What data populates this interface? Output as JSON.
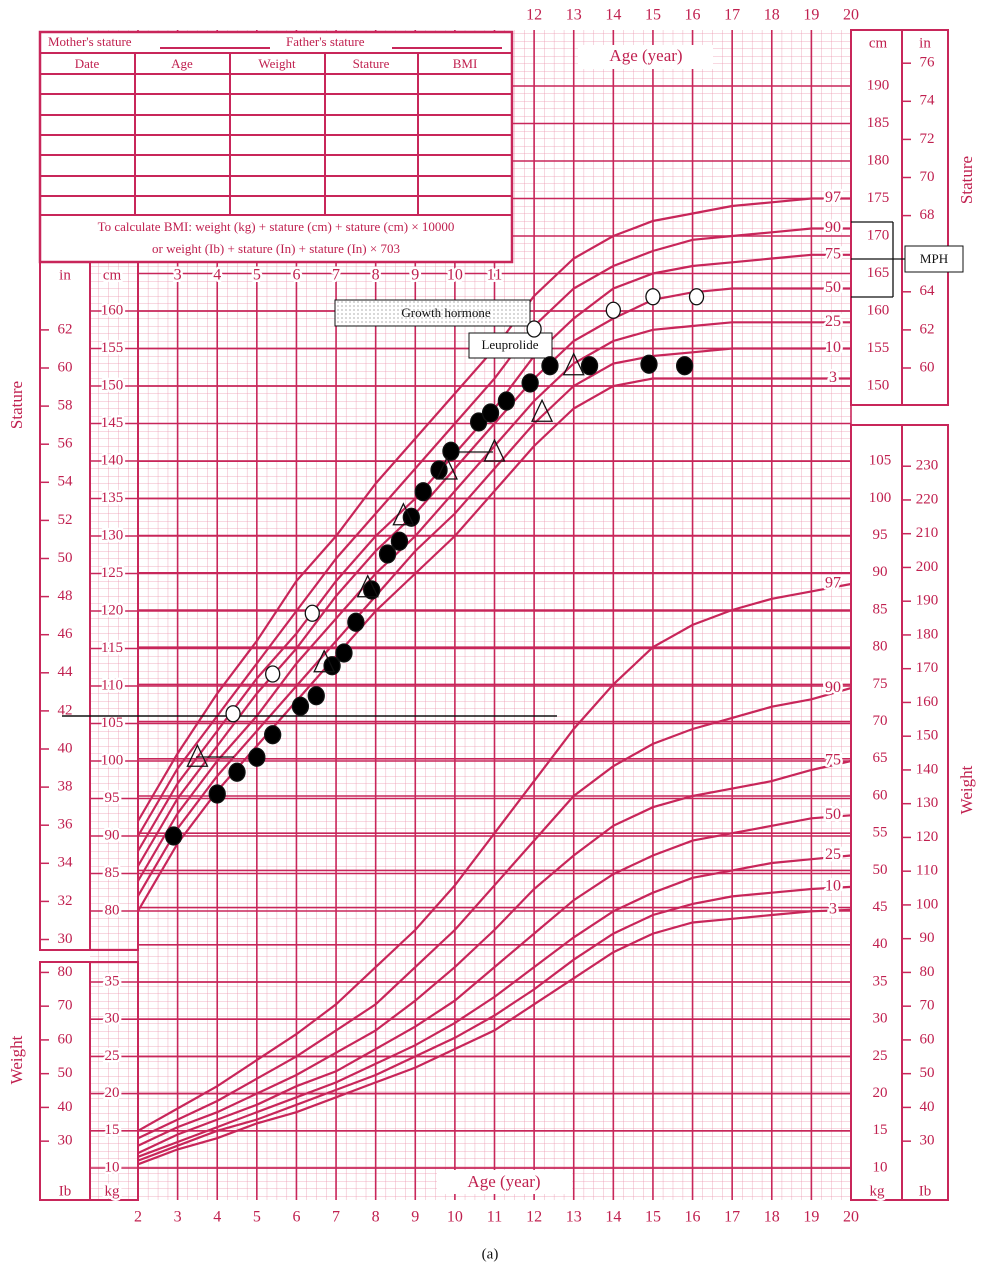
{
  "chart_data": {
    "type": "growth",
    "form": {
      "mothers_stature": "Mother's stature",
      "fathers_stature": "Father's stature",
      "columns": [
        "Date",
        "Age",
        "Weight",
        "Stature",
        "BMI"
      ],
      "note": [
        "To calculate BMI: weight (kg) + stature (cm) + stature (cm) × 10000",
        "or weight (Ib) + stature (In) + stature (In) × 703"
      ]
    },
    "x_label": "Age (year)",
    "y_label": "Stature",
    "y2_label": "Weight",
    "units": {
      "cm": "cm",
      "in": "in",
      "kg": "kg",
      "lb": "Ib"
    },
    "ages": [
      2,
      3,
      4,
      5,
      6,
      7,
      8,
      9,
      10,
      11,
      12,
      13,
      14,
      15,
      16,
      17,
      18,
      19,
      20
    ],
    "xlim": [
      2,
      20
    ],
    "xticks": [
      2,
      3,
      4,
      5,
      6,
      7,
      8,
      9,
      10,
      11,
      12,
      13,
      14,
      15,
      16,
      17,
      18,
      19,
      20
    ],
    "xticks_top": [
      12,
      13,
      14,
      15,
      16,
      17,
      18,
      19,
      20
    ],
    "xticks_inner": [
      3,
      4,
      5,
      6,
      7,
      8,
      9,
      10,
      11
    ],
    "ylim": [
      75,
      195
    ],
    "yticks_left": [
      80,
      85,
      90,
      95,
      100,
      105,
      110,
      115,
      120,
      125,
      130,
      135,
      140,
      145,
      150,
      155,
      160
    ],
    "yticks_right": [
      150,
      155,
      160,
      165,
      170,
      175,
      180,
      185,
      190
    ],
    "in_ticks_left": [
      30,
      32,
      34,
      36,
      38,
      40,
      42,
      44,
      46,
      48,
      50,
      52,
      54,
      56,
      58,
      60,
      62
    ],
    "in_ticks_right": [
      60,
      62,
      64,
      68,
      70,
      72,
      74,
      76
    ],
    "y2lim": [
      5,
      110
    ],
    "y2ticks_left": [
      10,
      15,
      20,
      25,
      30,
      35
    ],
    "y2ticks_right": [
      10,
      15,
      20,
      25,
      30,
      35,
      40,
      45,
      50,
      55,
      60,
      65,
      70,
      75,
      80,
      85,
      90,
      95,
      100,
      105
    ],
    "lb_ticks_left": [
      30,
      40,
      50,
      60,
      70,
      80
    ],
    "lb_ticks_right": [
      30,
      40,
      50,
      60,
      70,
      80,
      90,
      100,
      110,
      120,
      130,
      140,
      150,
      160,
      170,
      180,
      190,
      200,
      210,
      220,
      230
    ],
    "color": "#c8265a",
    "grid": true,
    "stature_percentiles": [
      {
        "name": "97",
        "values": [
          92,
          101,
          109,
          116,
          124,
          130,
          137,
          143,
          149,
          155,
          162,
          167,
          170,
          172,
          173,
          174,
          174.5,
          175,
          175
        ]
      },
      {
        "name": "90",
        "values": [
          90,
          99,
          106,
          113,
          120,
          127,
          133,
          139,
          145,
          151,
          158,
          163,
          166,
          168,
          169.5,
          170,
          170.5,
          171,
          171
        ]
      },
      {
        "name": "75",
        "values": [
          88,
          97,
          104,
          111,
          117,
          124,
          130,
          135,
          141,
          147,
          154,
          159,
          163,
          165,
          166,
          166.5,
          167,
          167.5,
          167.5
        ]
      },
      {
        "name": "50",
        "values": [
          86,
          95,
          102,
          109,
          115,
          122,
          128,
          133,
          139,
          145,
          151,
          156,
          159,
          161.5,
          162.5,
          163,
          163,
          163,
          163
        ]
      },
      {
        "name": "25",
        "values": [
          84,
          93,
          100,
          106,
          113,
          119,
          125,
          130,
          136,
          142,
          148,
          153,
          156,
          157.5,
          158,
          158.5,
          158.5,
          158.5,
          158.5
        ]
      },
      {
        "name": "10",
        "values": [
          82,
          91,
          98,
          104,
          110,
          116,
          122,
          128,
          133,
          139,
          145,
          150,
          153,
          154,
          154.5,
          155,
          155,
          155,
          155
        ]
      },
      {
        "name": "3",
        "values": [
          80,
          89,
          96,
          102,
          108,
          114,
          120,
          125,
          130,
          136,
          142,
          147,
          150,
          151,
          151,
          151,
          151,
          151,
          151
        ]
      }
    ],
    "weight_percentiles": [
      {
        "name": "97",
        "values": [
          15,
          18,
          21,
          24.5,
          28,
          32,
          37,
          42,
          48,
          55,
          62,
          69,
          75,
          80,
          83,
          85,
          86.5,
          87.5,
          88.5
        ]
      },
      {
        "name": "90",
        "values": [
          14,
          16.5,
          19,
          22,
          25,
          28.5,
          32,
          37,
          42,
          48,
          54,
          60,
          64,
          67,
          69,
          70.5,
          72,
          73,
          74.5
        ]
      },
      {
        "name": "75",
        "values": [
          13,
          15.5,
          17.5,
          20,
          22.5,
          25.5,
          28.5,
          32.5,
          37,
          42,
          47.5,
          52,
          56,
          58.5,
          60,
          61,
          62,
          63.5,
          64.7
        ]
      },
      {
        "name": "50",
        "values": [
          12,
          14.5,
          16.5,
          18.5,
          21,
          23,
          26,
          29,
          32.5,
          37,
          41.5,
          46,
          49.5,
          52,
          54,
          55,
          56,
          57,
          57.4
        ]
      },
      {
        "name": "25",
        "values": [
          11.5,
          13.5,
          15.5,
          17.5,
          19.5,
          21.5,
          24,
          26.5,
          29.5,
          33,
          37,
          41,
          44.5,
          47,
          49,
          50,
          51,
          51.5,
          52
        ]
      },
      {
        "name": "10",
        "values": [
          11,
          13,
          15,
          16.5,
          18.5,
          20.5,
          22.5,
          25,
          27.5,
          30.5,
          34,
          38,
          41.5,
          44,
          45.5,
          46.5,
          47,
          47.5,
          47.8
        ]
      },
      {
        "name": "3",
        "values": [
          10.5,
          12.5,
          14,
          16,
          17.5,
          19.5,
          21.5,
          23.5,
          26,
          28.5,
          32,
          35.5,
          39,
          41.5,
          43,
          43.5,
          44,
          44.5,
          44.7
        ]
      }
    ],
    "measurements": [
      {
        "marker": "filled-circle",
        "x": [
          2.9,
          4.0,
          4.5,
          5.0,
          5.4,
          6.1,
          6.5,
          6.9,
          7.2,
          7.5,
          7.9,
          8.3,
          8.6,
          8.9,
          9.2,
          9.6,
          9.9,
          10.6,
          10.9,
          11.3,
          11.9,
          12.4,
          13.4,
          14.9,
          15.8
        ],
        "values": [
          90,
          95.6,
          98.5,
          100.5,
          103.5,
          107.3,
          108.7,
          112.7,
          114.4,
          118.5,
          122.8,
          127.6,
          129.3,
          132.5,
          135.9,
          138.8,
          141.3,
          145.2,
          146.4,
          148,
          150.4,
          152.7,
          152.7,
          152.9,
          152.7
        ]
      },
      {
        "marker": "open-circle",
        "x": [
          4.4,
          5.4,
          6.4,
          12.0,
          14.0,
          15.0,
          16.1
        ],
        "values": [
          106.3,
          111.6,
          119.7,
          157.6,
          160.1,
          161.9,
          161.9
        ]
      },
      {
        "marker": "triangle",
        "x": [
          3.5,
          6.7,
          7.8,
          8.7,
          9.8,
          11.0,
          12.2,
          13.0
        ],
        "values": [
          100.5,
          113.1,
          123.1,
          132.7,
          138.8,
          141.2,
          146.5,
          152.7
        ]
      }
    ],
    "annotations": {
      "growth_hormone": "Growth hormone",
      "leuprolide": "Leuprolide",
      "mph": "MPH"
    },
    "caption": "(a)"
  }
}
